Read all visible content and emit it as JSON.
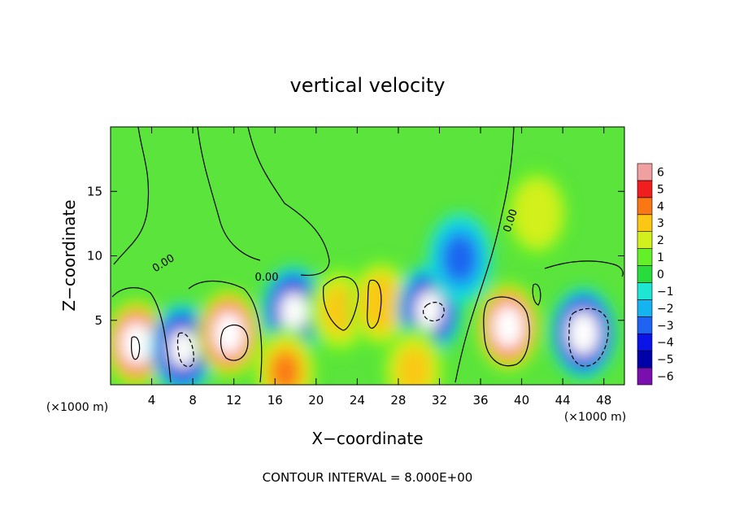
{
  "chart_data": {
    "type": "heatmap",
    "title": "vertical velocity",
    "xlabel": "X−coordinate",
    "ylabel": "Z−coordinate",
    "x_unit_left": "(×1000 m)",
    "x_unit_right": "(×1000 m)",
    "footer": "CONTOUR INTERVAL = 8.000E+00",
    "xlim": [
      0,
      50
    ],
    "ylim": [
      0,
      20
    ],
    "x_ticks": [
      4,
      8,
      12,
      16,
      20,
      24,
      28,
      32,
      36,
      40,
      44,
      48
    ],
    "y_ticks": [
      5,
      10,
      15
    ],
    "colorbar": {
      "levels": [
        -6,
        -5,
        -4,
        -3,
        -2,
        -1,
        0,
        1,
        2,
        3,
        4,
        5,
        6
      ],
      "colors": [
        "#7a0fb0",
        "#0000a8",
        "#0a14e8",
        "#1e64f0",
        "#14b4f0",
        "#1ee6d2",
        "#28dc3c",
        "#64f028",
        "#d2f01e",
        "#fac814",
        "#fa7814",
        "#f01e1e",
        "#f0a0a0"
      ],
      "over_color": "#ffffff",
      "under_color": "#ffffff"
    },
    "contour_labels": [
      "0.00",
      "0.00",
      "0.00"
    ],
    "cells": [
      {
        "x": 2.5,
        "z": 3.2,
        "w": 7.5
      },
      {
        "x": 7.0,
        "z": 2.8,
        "w": -7.0
      },
      {
        "x": 11.5,
        "z": 4.0,
        "w": 7.5
      },
      {
        "x": 17.8,
        "z": 5.7,
        "w": -7.0
      },
      {
        "x": 22.3,
        "z": 5.8,
        "w": 2.6
      },
      {
        "x": 26.3,
        "z": 6.3,
        "w": 3.2
      },
      {
        "x": 31.0,
        "z": 5.8,
        "w": -7.0
      },
      {
        "x": 34.0,
        "z": 9.8,
        "w": -2.6
      },
      {
        "x": 38.7,
        "z": 4.5,
        "w": 8.0
      },
      {
        "x": 41.5,
        "z": 13.3,
        "w": 2.4
      },
      {
        "x": 46.0,
        "z": 4.0,
        "w": -7.5
      },
      {
        "x": 17.0,
        "z": 1.0,
        "w": 4.0
      },
      {
        "x": 29.5,
        "z": 1.1,
        "w": 2.8
      }
    ]
  }
}
